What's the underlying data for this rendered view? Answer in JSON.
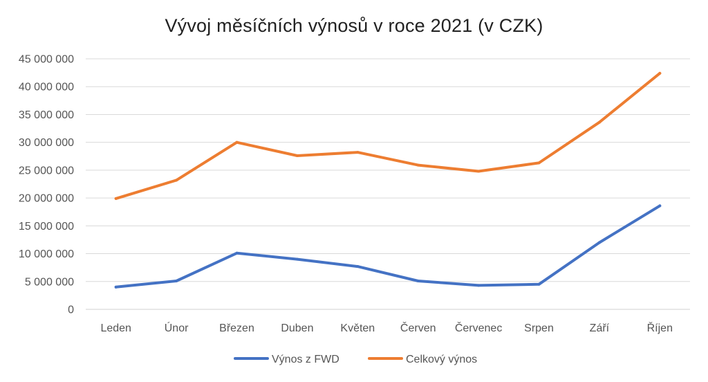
{
  "chart_data": {
    "type": "line",
    "title": "Vývoj měsíčních výnosů v roce 2021 (v CZK)",
    "categories": [
      "Leden",
      "Únor",
      "Březen",
      "Duben",
      "Květen",
      "Červen",
      "Červenec",
      "Srpen",
      "Září",
      "Říjen"
    ],
    "y_ticks": [
      "0",
      "5 000 000",
      "10 000 000",
      "15 000 000",
      "20 000 000",
      "25 000 000",
      "30 000 000",
      "35 000 000",
      "40 000 000",
      "45 000 000"
    ],
    "ylim": [
      0,
      45000000
    ],
    "grid": true,
    "legend_position": "bottom",
    "series": [
      {
        "name": "Výnos z FWD",
        "color": "#4472C4",
        "values": [
          4000000,
          5100000,
          10100000,
          9000000,
          7700000,
          5100000,
          4300000,
          4500000,
          12000000,
          18600000
        ]
      },
      {
        "name": "Celkový výnos",
        "color": "#ED7D31",
        "values": [
          19900000,
          23200000,
          30000000,
          27600000,
          28200000,
          25900000,
          24800000,
          26300000,
          33600000,
          42400000
        ]
      }
    ]
  }
}
